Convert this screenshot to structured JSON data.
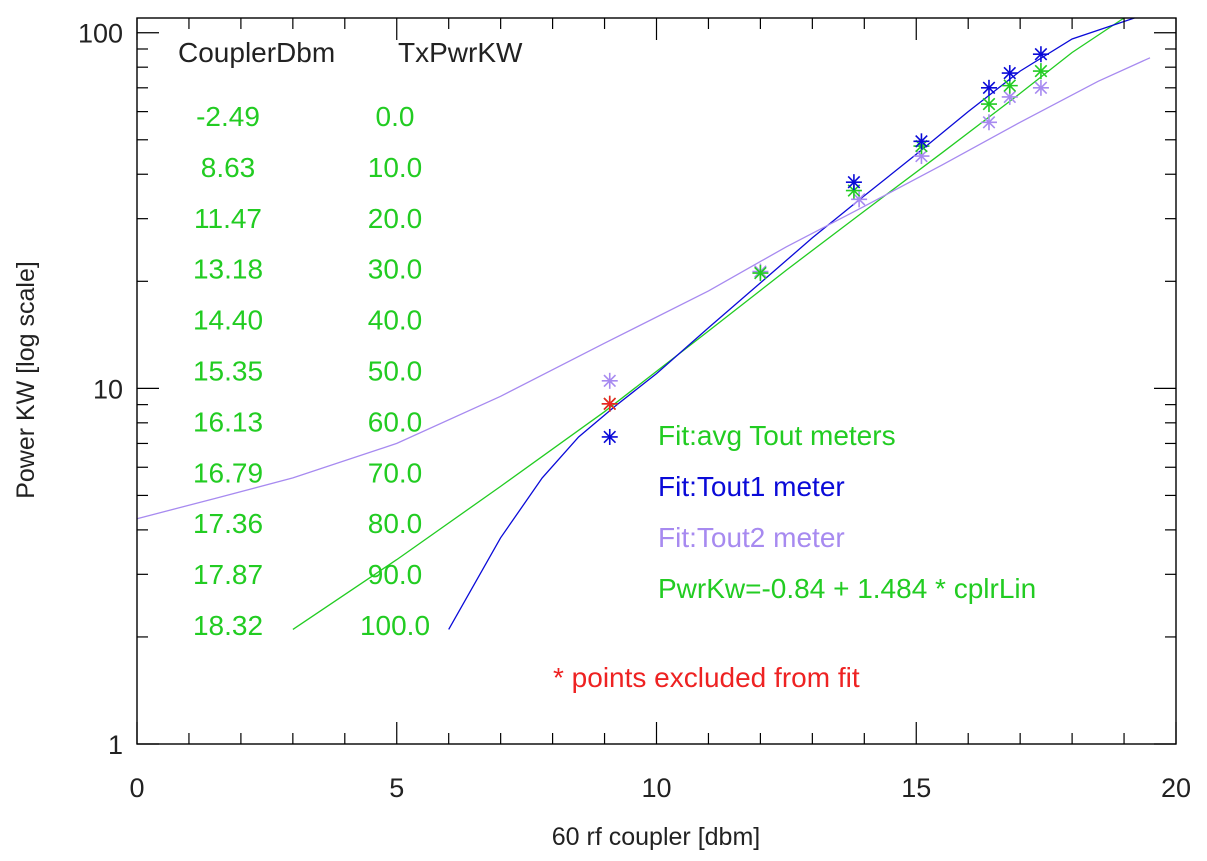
{
  "chart_data": {
    "type": "scatter",
    "xlabel": "60 rf coupler [dbm]",
    "ylabel": "Power KW [log scale]",
    "xlim": [
      0,
      20
    ],
    "ylim": [
      1,
      110
    ],
    "yscale": "log",
    "grid": false,
    "x_ticks": [
      0,
      5,
      10,
      15,
      20
    ],
    "x_tick_labels": [
      "0",
      "5",
      "10",
      "15",
      "20"
    ],
    "x_minor_step": 1,
    "y_ticks": [
      1,
      10,
      100
    ],
    "y_tick_labels": [
      "1",
      "10",
      "100"
    ],
    "colors": {
      "avg": "#22cc22",
      "tout1": "#0a0ad8",
      "tout2": "#a78af0",
      "excluded": "#ee2222",
      "text": "#222222",
      "axis": "#000000"
    },
    "table": {
      "headers": [
        "CouplerDbm",
        "TxPwrKW"
      ],
      "rows": [
        [
          "-2.49",
          "0.0"
        ],
        [
          "8.63",
          "10.0"
        ],
        [
          "11.47",
          "20.0"
        ],
        [
          "13.18",
          "30.0"
        ],
        [
          "14.40",
          "40.0"
        ],
        [
          "15.35",
          "50.0"
        ],
        [
          "16.13",
          "60.0"
        ],
        [
          "16.79",
          "70.0"
        ],
        [
          "17.36",
          "80.0"
        ],
        [
          "17.87",
          "90.0"
        ],
        [
          "18.32",
          "100.0"
        ]
      ]
    },
    "legend": {
      "avg": "Fit:avg Tout meters",
      "tout1": "Fit:Tout1 meter",
      "tout2": "Fit:Tout2 meter",
      "equation": "PwrKw=-0.84 + 1.484 * cplrLin"
    },
    "note": "* points excluded from fit",
    "fit_lines": [
      {
        "key": "avg",
        "x": [
          3.0,
          5.0,
          7.0,
          9.0,
          11.0,
          12.5,
          14.0,
          15.5,
          17.0,
          18.0,
          19.0
        ],
        "y": [
          2.1,
          3.3,
          5.3,
          8.6,
          14.5,
          21.5,
          31.5,
          46.0,
          67.5,
          88.0,
          110.0
        ]
      },
      {
        "key": "tout1",
        "x": [
          6.0,
          7.0,
          7.8,
          8.5,
          9.2,
          10.0,
          11.0,
          12.0,
          13.0,
          14.0,
          15.0,
          16.0,
          17.0,
          18.0,
          19.2
        ],
        "y": [
          2.1,
          3.8,
          5.6,
          7.3,
          8.9,
          11.0,
          14.8,
          19.8,
          26.5,
          34.8,
          45.5,
          60.0,
          78.0,
          96.0,
          110.0
        ]
      },
      {
        "key": "tout2",
        "x": [
          0.0,
          1.5,
          3.0,
          5.0,
          7.0,
          9.0,
          11.0,
          12.5,
          14.0,
          15.5,
          17.0,
          18.5,
          19.5
        ],
        "y": [
          4.3,
          4.9,
          5.6,
          7.0,
          9.5,
          13.4,
          18.8,
          25.0,
          32.5,
          42.5,
          56.0,
          73.0,
          85.0
        ]
      }
    ],
    "points": {
      "avg": [
        [
          9.1,
          9.05
        ],
        [
          12.0,
          21.1
        ],
        [
          13.8,
          36.0
        ],
        [
          15.1,
          48.0
        ],
        [
          16.4,
          63.0
        ],
        [
          16.8,
          71.0
        ],
        [
          17.4,
          78.0
        ]
      ],
      "tout1": [
        [
          9.1,
          7.3
        ],
        [
          13.8,
          38.0
        ],
        [
          15.1,
          49.5
        ],
        [
          16.4,
          70.0
        ],
        [
          16.8,
          77.0
        ],
        [
          17.4,
          87.0
        ]
      ],
      "tout2": [
        [
          9.1,
          10.5
        ],
        [
          12.0,
          21.3
        ],
        [
          13.9,
          34.0
        ],
        [
          15.1,
          45.0
        ],
        [
          16.4,
          56.0
        ],
        [
          16.8,
          66.0
        ],
        [
          17.4,
          70.0
        ]
      ],
      "excluded": [
        [
          9.1,
          9.05
        ]
      ]
    }
  }
}
